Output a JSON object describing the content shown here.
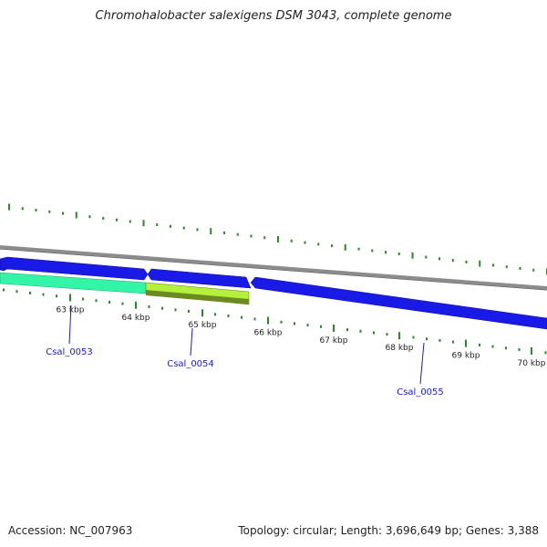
{
  "title": "Chromohalobacter salexigens DSM 3043, complete genome",
  "footer": {
    "accession": "Accession: NC_007963",
    "summary": "Topology: circular; Length: 3,696,649 bp; Genes: 3,388"
  },
  "colors": {
    "backbone": "#8c8c8c",
    "forward_gene": "#1a1ae6",
    "reverse_gene_1": "#33f5a8",
    "reverse_gene_2": "#b4f03c",
    "tick": "#2a8a2a",
    "gene_label": "#1a1acc"
  },
  "scale": {
    "unit": "kbp",
    "tick_labels": [
      "63 kbp",
      "64 kbp",
      "65 kbp",
      "66 kbp",
      "67 kbp",
      "68 kbp",
      "69 kbp",
      "70 kbp"
    ]
  },
  "genes": [
    {
      "label": "Csal_0053",
      "strand": "reverse"
    },
    {
      "label": "Csal_0054",
      "strand": "reverse"
    },
    {
      "label": "Csal_0055",
      "strand": "forward"
    }
  ]
}
